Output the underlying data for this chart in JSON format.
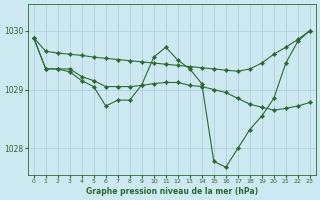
{
  "title": "Graphe pression niveau de la mer (hPa)",
  "background_color": "#cce8f0",
  "grid_color": "#aaccdd",
  "line_color": "#2d6a2d",
  "marker_color": "#2d6a2d",
  "ylim": [
    1027.55,
    1030.45
  ],
  "yticks": [
    1028,
    1029,
    1030
  ],
  "xlim": [
    -0.5,
    23.5
  ],
  "xticks": [
    0,
    1,
    2,
    3,
    4,
    5,
    6,
    7,
    8,
    9,
    10,
    11,
    12,
    13,
    14,
    15,
    16,
    17,
    18,
    19,
    20,
    21,
    22,
    23
  ],
  "series": [
    {
      "x": [
        0,
        1,
        2,
        3,
        4,
        5,
        6,
        7,
        8,
        9,
        10,
        11,
        12,
        13,
        14,
        15,
        16,
        17,
        18,
        19,
        20,
        21,
        22,
        23
      ],
      "y": [
        1029.88,
        1029.65,
        1029.62,
        1029.6,
        1029.58,
        1029.55,
        1029.53,
        1029.51,
        1029.49,
        1029.47,
        1029.45,
        1029.43,
        1029.41,
        1029.39,
        1029.37,
        1029.35,
        1029.33,
        1029.31,
        1029.35,
        1029.45,
        1029.6,
        1029.72,
        1029.85,
        1030.0
      ]
    },
    {
      "x": [
        0,
        1,
        2,
        3,
        4,
        5,
        6,
        7,
        8,
        9,
        10,
        11,
        12,
        13,
        14,
        15,
        16,
        17,
        18,
        19,
        20,
        21,
        22,
        23
      ],
      "y": [
        1029.88,
        1029.35,
        1029.35,
        1029.35,
        1029.22,
        1029.15,
        1029.05,
        1029.05,
        1029.05,
        1029.07,
        1029.1,
        1029.12,
        1029.12,
        1029.07,
        1029.05,
        1029.0,
        1028.95,
        1028.85,
        1028.75,
        1028.7,
        1028.65,
        1028.68,
        1028.72,
        1028.78
      ]
    },
    {
      "x": [
        0,
        1,
        2,
        3,
        4,
        5,
        6,
        7,
        8,
        9,
        10,
        11,
        12,
        13,
        14,
        15,
        16,
        17,
        18,
        19,
        20,
        21,
        22,
        23
      ],
      "y": [
        1029.88,
        1029.35,
        1029.35,
        1029.3,
        1029.15,
        1029.05,
        1028.72,
        1028.82,
        1028.82,
        1029.08,
        1029.55,
        1029.72,
        1029.5,
        1029.35,
        1029.1,
        1027.78,
        1027.68,
        1028.0,
        1028.32,
        1028.55,
        1028.85,
        1029.45,
        1029.82,
        1030.0
      ]
    }
  ]
}
